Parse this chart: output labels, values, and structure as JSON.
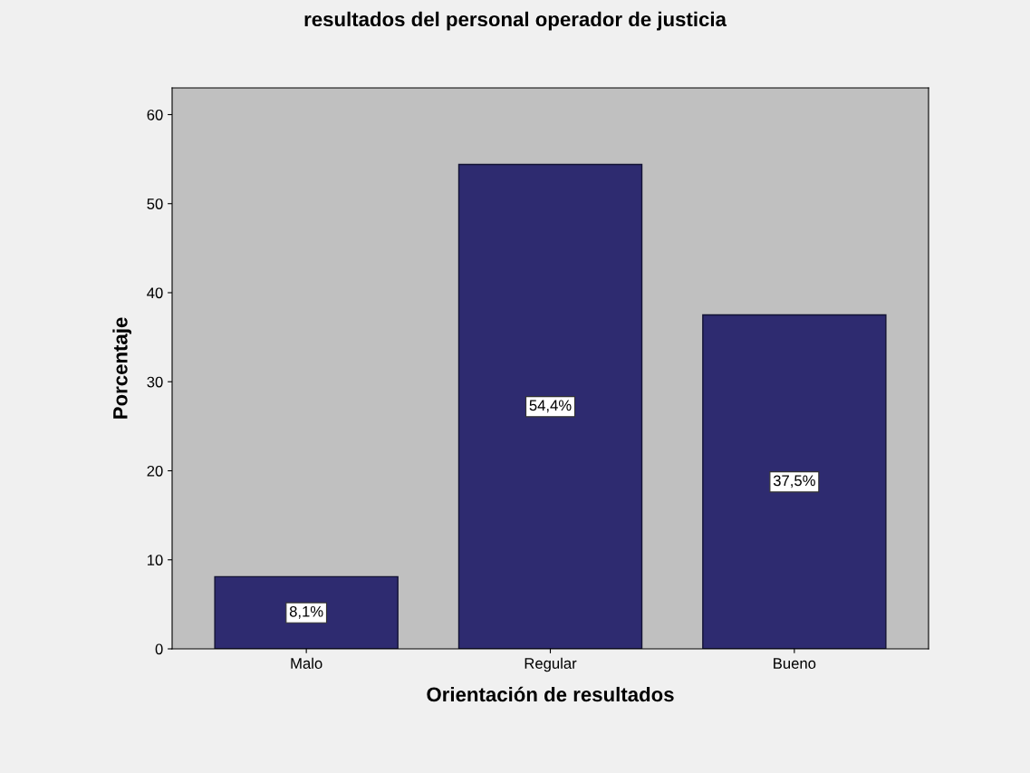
{
  "chart_data": {
    "type": "bar",
    "title": "resultados del personal operador de justicia",
    "xlabel": "Orientación de resultados",
    "ylabel": "Porcentaje",
    "categories": [
      "Malo",
      "Regular",
      "Bueno"
    ],
    "values": [
      8.1,
      54.4,
      37.5
    ],
    "value_labels": [
      "8,1%",
      "54,4%",
      "37,5%"
    ],
    "color": "#2e2b70",
    "ylim": [
      0,
      63
    ],
    "yticks": [
      0,
      10,
      20,
      30,
      40,
      50,
      60
    ],
    "grid": false,
    "legend": false
  }
}
